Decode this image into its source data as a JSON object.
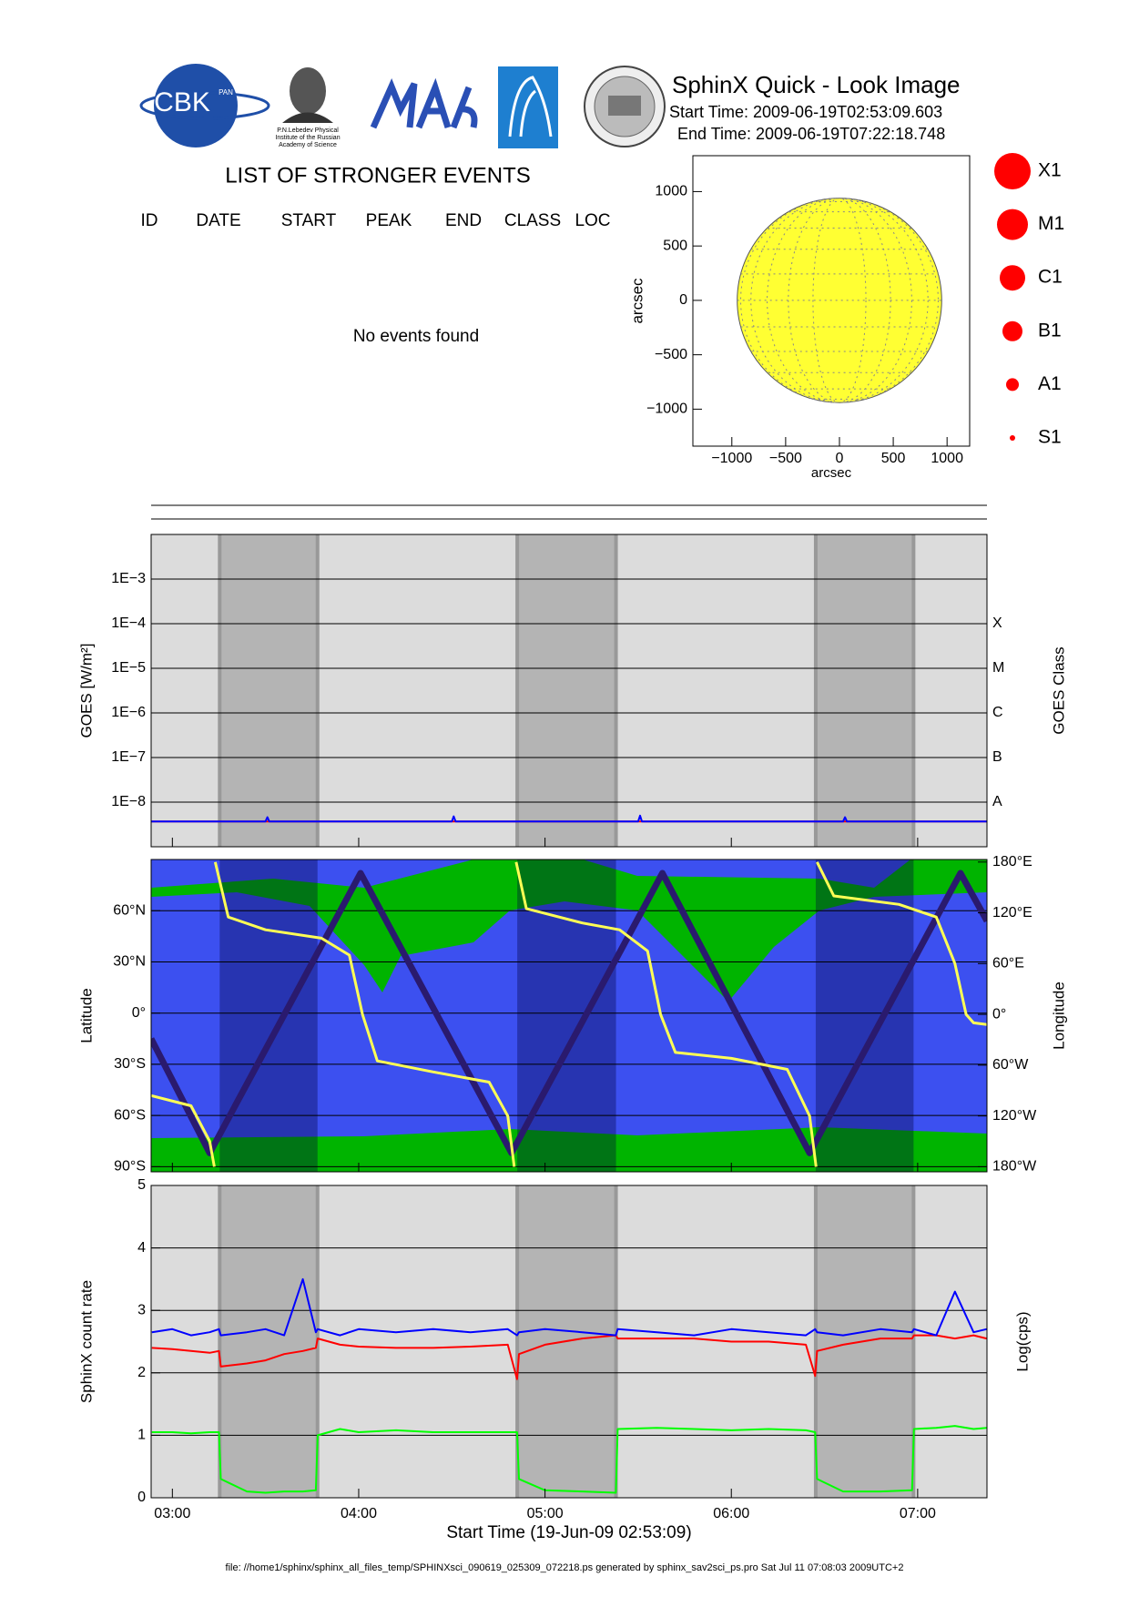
{
  "header": {
    "title": "SphinX Quick - Look Image",
    "start_time": "Start Time: 2009-06-19T02:53:09.603",
    "end_time": "End Time: 2009-06-19T07:22:18.748",
    "logo_cbk": "CBK",
    "logo_pan": "PAN",
    "lebedev": [
      "P.N.Lebedev Physical",
      "Institute of the Russian",
      "Academy of Science"
    ]
  },
  "events": {
    "title": "LIST OF STRONGER EVENTS",
    "columns": [
      "ID",
      "DATE",
      "START",
      "PEAK",
      "END",
      "CLASS",
      "LOC"
    ],
    "message": "No events found"
  },
  "class_legend": [
    "X1",
    "M1",
    "C1",
    "B1",
    "A1",
    "S1"
  ],
  "orbit_night": [
    [
      3.254,
      3.779
    ],
    [
      4.851,
      5.381
    ],
    [
      6.453,
      6.978
    ]
  ],
  "chart_data": [
    {
      "type": "map",
      "xlabel": "arcsec",
      "ylabel": "arcsec",
      "xlim": [
        -1362,
        1210
      ],
      "ylim": [
        -1340,
        1330
      ],
      "xticks": [
        {
          "value": -1000,
          "label": "−1000"
        },
        {
          "value": -500,
          "label": "−500"
        },
        0,
        500,
        1000
      ],
      "yticks": [
        {
          "value": -1000,
          "label": "−1000"
        },
        {
          "value": -500,
          "label": "−500"
        },
        0,
        500,
        1000
      ],
      "disk_radius": 950,
      "disk_color": "#ffff33"
    },
    {
      "type": "line",
      "ylabel": "GOES [W/m²]",
      "y2label": "GOES Class",
      "log_y": true,
      "grid": true,
      "xlim": [
        2.886,
        7.372
      ],
      "ylim": [
        1e-09,
        0.01
      ],
      "y2lim": [
        1e-09,
        0.01
      ],
      "yticks": [
        {
          "value": 1e-08,
          "label": "1E−8"
        },
        {
          "value": 1e-07,
          "label": "1E−7"
        },
        {
          "value": 1e-06,
          "label": "1E−6"
        },
        {
          "value": 1e-05,
          "label": "1E−5"
        },
        {
          "value": 0.0001,
          "label": "1E−4"
        },
        {
          "value": 0.001,
          "label": "1E−3"
        }
      ],
      "y2ticks": [
        {
          "value": 1e-08,
          "label": "A"
        },
        {
          "value": 1e-07,
          "label": "B"
        },
        {
          "value": 1e-06,
          "label": "C"
        },
        {
          "value": 1e-05,
          "label": "M"
        },
        {
          "value": 0.0001,
          "label": "X"
        }
      ],
      "series": [
        {
          "color": "#ff0000",
          "x": [
            2.886,
            7.372
          ],
          "values": [
            3.7e-09,
            3.7e-09
          ]
        },
        {
          "color": "#0000ff",
          "x": [
            2.886,
            3.5,
            3.51,
            3.52,
            4.5,
            4.51,
            4.52,
            5.5,
            5.51,
            5.52,
            6.6,
            6.61,
            6.62,
            7.372
          ],
          "values": [
            3.7e-09,
            3.7e-09,
            4.6e-09,
            3.7e-09,
            3.7e-09,
            4.8e-09,
            3.7e-09,
            3.7e-09,
            5e-09,
            3.7e-09,
            3.7e-09,
            4.6e-09,
            3.7e-09,
            3.7e-09
          ]
        }
      ]
    },
    {
      "type": "line",
      "ylabel": "Latitude",
      "y2label": "Longitude",
      "grid": true,
      "xlim": [
        2.886,
        7.372
      ],
      "ylim": [
        -93,
        90
      ],
      "y2lim": [
        -186,
        183
      ],
      "yticks": [
        {
          "value": -90,
          "label": "90°S"
        },
        {
          "value": -60,
          "label": "60°S"
        },
        {
          "value": -30,
          "label": "30°S"
        },
        {
          "value": 0,
          "label": "0°"
        },
        {
          "value": 30,
          "label": "30°N"
        },
        {
          "value": 60,
          "label": "60°N"
        }
      ],
      "y2ticks": [
        {
          "value": -180,
          "label": "180°W"
        },
        {
          "value": -120,
          "label": "120°W"
        },
        {
          "value": -60,
          "label": "60°W"
        },
        {
          "value": 0,
          "label": "0°"
        },
        {
          "value": 60,
          "label": "60°E"
        },
        {
          "value": 120,
          "label": "120°E"
        },
        {
          "value": 180,
          "label": "180°E"
        }
      ],
      "series": [
        {
          "color": "#2a1a6e",
          "x": [
            2.886,
            3.2,
            4.01,
            4.82,
            5.63,
            6.42,
            7.23,
            7.372
          ],
          "values": [
            -15,
            -82,
            82,
            -82,
            82,
            -82,
            82,
            54
          ]
        },
        {
          "color": "#ffff55",
          "axis": "y2",
          "x": [
            2.886,
            3.1,
            3.2,
            3.225,
            3.227,
            3.23,
            3.3,
            3.5,
            3.8,
            3.95,
            4.02,
            4.1,
            4.4,
            4.7,
            4.8,
            4.835,
            4.84,
            4.845,
            4.9,
            5.2,
            5.4,
            5.55,
            5.62,
            5.7,
            6.0,
            6.3,
            6.42,
            6.455,
            6.457,
            6.46,
            6.55,
            6.9,
            7.1,
            7.2,
            7.26,
            7.3,
            7.372
          ],
          "values": [
            -96,
            -108,
            -150,
            -180,
            null,
            180,
            115,
            100,
            90,
            70,
            0,
            -55,
            -68,
            -80,
            -120,
            -180,
            null,
            180,
            125,
            108,
            100,
            75,
            0,
            -45,
            -52,
            -65,
            -120,
            -180,
            null,
            180,
            140,
            130,
            115,
            60,
            0,
            -10,
            -12
          ]
        }
      ]
    },
    {
      "type": "line",
      "ylabel": "SphinX count rate",
      "y2label": "Log(cps)",
      "xlabel": "Start Time (19-Jun-09 02:53:09)",
      "grid": true,
      "xlim": [
        2.886,
        7.372
      ],
      "ylim": [
        0,
        5
      ],
      "yticks": [
        0,
        1,
        2,
        3,
        4,
        5
      ],
      "xticks": [
        {
          "value": 3,
          "label": "03:00"
        },
        {
          "value": 4,
          "label": "04:00"
        },
        {
          "value": 5,
          "label": "05:00"
        },
        {
          "value": 6,
          "label": "06:00"
        },
        {
          "value": 7,
          "label": "07:00"
        }
      ],
      "x": [
        2.89,
        3.0,
        3.1,
        3.2,
        3.25,
        3.26,
        3.4,
        3.5,
        3.6,
        3.7,
        3.77,
        3.78,
        3.9,
        4.0,
        4.2,
        4.4,
        4.6,
        4.8,
        4.85,
        4.86,
        5.0,
        5.2,
        5.38,
        5.39,
        5.6,
        5.8,
        6.0,
        6.2,
        6.4,
        6.45,
        6.46,
        6.6,
        6.8,
        6.97,
        6.98,
        7.1,
        7.2,
        7.3,
        7.37
      ],
      "series": [
        {
          "color": "#00ff00",
          "values": [
            1.05,
            1.05,
            1.03,
            1.05,
            1.05,
            0.3,
            0.1,
            0.08,
            0.1,
            0.1,
            0.12,
            1.0,
            1.1,
            1.05,
            1.08,
            1.05,
            1.05,
            1.05,
            1.05,
            0.3,
            0.12,
            0.1,
            0.08,
            1.1,
            1.12,
            1.1,
            1.08,
            1.1,
            1.08,
            1.05,
            0.3,
            0.1,
            0.1,
            0.12,
            1.1,
            1.12,
            1.15,
            1.1,
            1.12
          ]
        },
        {
          "color": "#ff0000",
          "values": [
            2.4,
            2.38,
            2.35,
            2.32,
            2.35,
            2.1,
            2.15,
            2.2,
            2.3,
            2.35,
            2.4,
            2.55,
            2.45,
            2.42,
            2.4,
            2.4,
            2.42,
            2.45,
            1.9,
            2.3,
            2.45,
            2.55,
            2.6,
            2.55,
            2.55,
            2.55,
            2.5,
            2.5,
            2.45,
            1.95,
            2.35,
            2.45,
            2.55,
            2.55,
            2.6,
            2.6,
            2.55,
            2.6,
            2.55
          ]
        },
        {
          "color": "#0000ff",
          "values": [
            2.65,
            2.7,
            2.6,
            2.65,
            2.7,
            2.6,
            2.65,
            2.7,
            2.6,
            3.5,
            2.65,
            2.7,
            2.6,
            2.7,
            2.65,
            2.7,
            2.65,
            2.7,
            2.6,
            2.65,
            2.7,
            2.65,
            2.6,
            2.7,
            2.65,
            2.6,
            2.7,
            2.65,
            2.6,
            2.7,
            2.65,
            2.6,
            2.7,
            2.65,
            2.7,
            2.6,
            3.3,
            2.65,
            2.7
          ]
        }
      ]
    }
  ],
  "footer": "file: //home1/sphinx/sphinx_all_files_temp/SPHINXsci_090619_025309_072218.ps generated by sphinx_sav2sci_ps.pro Sat Jul 11 07:08:03 2009UTC+2"
}
